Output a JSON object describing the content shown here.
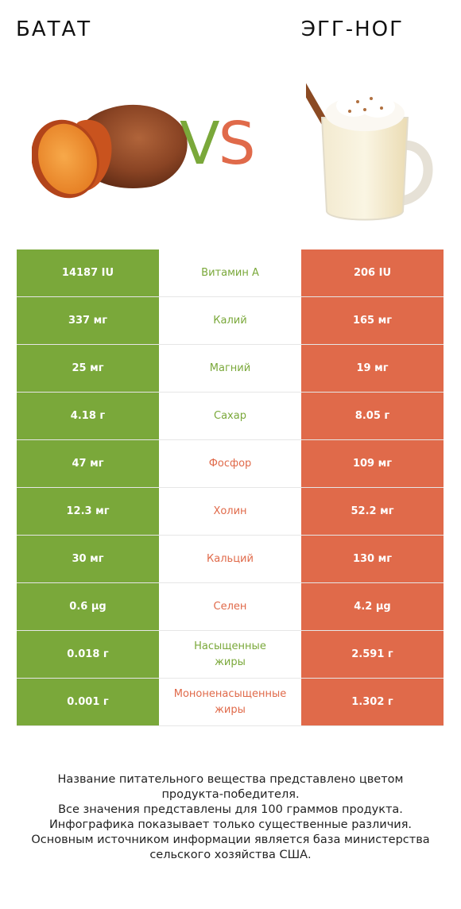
{
  "header": {
    "left_food": "БАТАТ",
    "right_food": "ЭГГ-НОГ",
    "vs_v": "V",
    "vs_s": "S"
  },
  "colors": {
    "left": "#7aa83a",
    "right": "#e06a4a"
  },
  "rows": [
    {
      "left": "14187 IU",
      "name": "Витамин A",
      "right": "206 IU",
      "winner": "left"
    },
    {
      "left": "337 мг",
      "name": "Калий",
      "right": "165 мг",
      "winner": "left"
    },
    {
      "left": "25 мг",
      "name": "Магний",
      "right": "19 мг",
      "winner": "left"
    },
    {
      "left": "4.18 г",
      "name": "Сахар",
      "right": "8.05 г",
      "winner": "left"
    },
    {
      "left": "47 мг",
      "name": "Фосфор",
      "right": "109 мг",
      "winner": "right"
    },
    {
      "left": "12.3 мг",
      "name": "Холин",
      "right": "52.2 мг",
      "winner": "right"
    },
    {
      "left": "30 мг",
      "name": "Кальций",
      "right": "130 мг",
      "winner": "right"
    },
    {
      "left": "0.6 µg",
      "name": "Селен",
      "right": "4.2 µg",
      "winner": "right"
    },
    {
      "left": "0.018 г",
      "name_line1": "Насыщенные",
      "name_line2": "жиры",
      "right": "2.591 г",
      "winner": "left"
    },
    {
      "left": "0.001 г",
      "name_line1": "Мононенасыщенные",
      "name_line2": "жиры",
      "right": "1.302 г",
      "winner": "right"
    }
  ],
  "footer": {
    "line1": "Название питательного вещества представлено цветом",
    "line2": "продукта-победителя.",
    "line3": "Все значения представлены для 100 граммов продукта.",
    "line4": "Инфографика показывает только существенные различия.",
    "line5": "Основным источником информации является база министерства",
    "line6": "сельского хозяйства США."
  }
}
